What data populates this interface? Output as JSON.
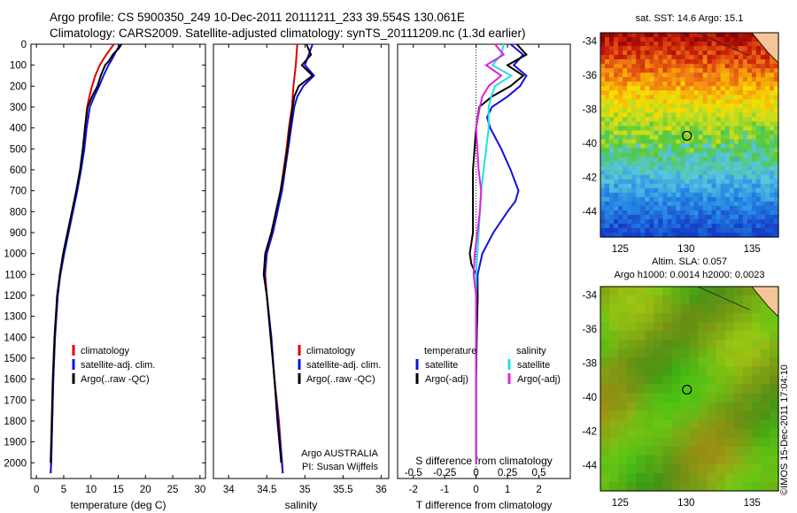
{
  "header": {
    "line1": "Argo profile: CS 5900350_249 10-Dec-2011 20111211_233 39.554S 130.061E",
    "line2": "Climatology: CARS2009. Satellite-adjusted climatology: synTS_20111209.nc (1.3d earlier)"
  },
  "credit": "©IMOS 15-Dec-2011 17:04:10",
  "colors": {
    "climatology": "#e00000",
    "satellite": "#1010e0",
    "argo": "#000000",
    "sal_satellite": "#20e0e8",
    "sal_argo": "#e020e0"
  },
  "chart_data": [
    {
      "type": "line",
      "xlabel": "temperature (deg C)",
      "ylabel": "",
      "xlim": [
        -1,
        31
      ],
      "ylim": [
        2075,
        0
      ],
      "xticks": [
        0,
        5,
        10,
        15,
        20,
        25,
        30
      ],
      "yticks": [
        0,
        100,
        200,
        300,
        400,
        500,
        600,
        700,
        800,
        900,
        1000,
        1100,
        1200,
        1300,
        1400,
        1500,
        1600,
        1700,
        1800,
        1900,
        2000
      ],
      "legend": [
        "climatology",
        "satellite-adj. clim.",
        "Argo(..raw -QC)"
      ],
      "series": [
        {
          "name": "climatology",
          "color": "#e00000",
          "depth": [
            0,
            50,
            100,
            150,
            200,
            250,
            300,
            400,
            500,
            600,
            700,
            800,
            900,
            1000,
            1100,
            1200,
            1400,
            1600,
            1800,
            2000,
            2050
          ],
          "values": [
            14.2,
            12.8,
            11.6,
            10.8,
            10.2,
            9.7,
            9.3,
            8.9,
            8.6,
            8.1,
            7.4,
            6.6,
            5.8,
            5.0,
            4.3,
            3.9,
            3.4,
            3.1,
            2.9,
            2.7,
            2.6
          ]
        },
        {
          "name": "satellite-adj. clim.",
          "color": "#1010e0",
          "depth": [
            0,
            20,
            50,
            80,
            100,
            150,
            200,
            250,
            300,
            400,
            500,
            600,
            700,
            800,
            900,
            1000,
            1100,
            1200,
            1400,
            1600,
            1800,
            2000,
            2050
          ],
          "values": [
            15.4,
            14.9,
            14.3,
            13.7,
            13.2,
            12.3,
            11.5,
            10.6,
            9.8,
            9.2,
            8.8,
            8.2,
            7.5,
            6.7,
            5.9,
            5.1,
            4.4,
            3.9,
            3.4,
            3.1,
            2.9,
            2.7,
            2.6
          ]
        },
        {
          "name": "Argo(..raw -QC)",
          "color": "#000000",
          "depth": [
            0,
            20,
            50,
            80,
            100,
            150,
            200,
            250,
            300,
            400,
            500,
            600,
            700,
            800,
            900,
            1000,
            1100,
            1200,
            1400,
            1600,
            1800,
            2000
          ],
          "values": [
            15.6,
            15.1,
            14.0,
            13.3,
            12.6,
            11.8,
            11.2,
            10.2,
            9.4,
            8.9,
            8.5,
            8.0,
            7.3,
            6.5,
            5.7,
            4.9,
            4.3,
            3.8,
            3.3,
            3.0,
            2.8,
            2.6
          ]
        }
      ]
    },
    {
      "type": "line",
      "xlabel": "salinity",
      "xlim": [
        33.8,
        36.1
      ],
      "ylim": [
        2075,
        0
      ],
      "xticks": [
        34,
        34.5,
        35,
        35.5,
        36
      ],
      "legend": [
        "climatology",
        "satellite-adj. clim.",
        "Argo(..raw -QC)"
      ],
      "annotation": [
        "Argo AUSTRALIA",
        "PI: Susan Wijffels"
      ],
      "series": [
        {
          "name": "climatology",
          "color": "#e00000",
          "depth": [
            0,
            100,
            200,
            300,
            400,
            500,
            600,
            700,
            800,
            900,
            1000,
            1100,
            1200,
            1400,
            1600,
            1800,
            2000,
            2050
          ],
          "values": [
            34.9,
            34.88,
            34.85,
            34.83,
            34.79,
            34.76,
            34.72,
            34.68,
            34.64,
            34.58,
            34.5,
            34.48,
            34.5,
            34.56,
            34.6,
            34.66,
            34.7,
            34.71
          ]
        },
        {
          "name": "satellite-adj. clim.",
          "color": "#1010e0",
          "depth": [
            0,
            50,
            100,
            150,
            200,
            250,
            300,
            400,
            500,
            600,
            700,
            800,
            900,
            1000,
            1100,
            1200,
            1400,
            1600,
            1800,
            2000,
            2050
          ],
          "values": [
            35.1,
            35.05,
            35.0,
            35.12,
            34.98,
            34.9,
            34.86,
            34.82,
            34.78,
            34.74,
            34.7,
            34.64,
            34.58,
            34.5,
            34.47,
            34.5,
            34.56,
            34.6,
            34.65,
            34.7,
            34.71
          ]
        },
        {
          "name": "Argo(..raw -QC)",
          "color": "#000000",
          "depth": [
            0,
            50,
            100,
            150,
            200,
            250,
            300,
            400,
            500,
            600,
            700,
            800,
            900,
            1000,
            1100,
            1200,
            1400,
            1600,
            1800,
            2000
          ],
          "values": [
            35.02,
            35.08,
            34.96,
            35.1,
            34.92,
            34.86,
            34.84,
            34.8,
            34.77,
            34.73,
            34.68,
            34.62,
            34.56,
            34.48,
            34.46,
            34.5,
            34.55,
            34.6,
            34.64,
            34.69
          ]
        }
      ]
    },
    {
      "type": "line",
      "xlabel": "T difference from climatology",
      "top_label": "S difference from climatology",
      "xlim": [
        -2.5,
        3
      ],
      "ylim": [
        2075,
        0
      ],
      "xticks": [
        -2,
        -1,
        0,
        1,
        2
      ],
      "xticks_top": [
        -0.5,
        -0.25,
        0,
        0.25,
        0.5
      ],
      "legend_groups": [
        {
          "title": "temperature",
          "items": [
            "satellite",
            "Argo(-adj)"
          ]
        },
        {
          "title": "salinity",
          "items": [
            "satellite",
            "Argo(-adj)"
          ]
        }
      ],
      "series": [
        {
          "name": "T satellite",
          "color": "#1010e0",
          "depth": [
            0,
            50,
            100,
            150,
            200,
            250,
            300,
            350,
            400,
            500,
            600,
            700,
            750,
            800,
            900,
            1000,
            1100,
            1200,
            1400,
            1600,
            2000
          ],
          "values": [
            1.1,
            1.5,
            1.2,
            1.6,
            1.4,
            1.0,
            0.5,
            0.35,
            0.45,
            0.8,
            1.1,
            1.35,
            1.25,
            1.0,
            0.55,
            0.2,
            0.05,
            0.05,
            0.02,
            0.0,
            0.0
          ]
        },
        {
          "name": "T Argo(-adj)",
          "color": "#000000",
          "depth": [
            0,
            50,
            100,
            150,
            200,
            250,
            300,
            400,
            500,
            600,
            700,
            800,
            900,
            1000,
            1050,
            1100,
            1200,
            1400,
            1600,
            2000
          ],
          "values": [
            1.3,
            1.6,
            1.0,
            1.5,
            1.1,
            0.5,
            0.1,
            0.0,
            -0.05,
            -0.1,
            -0.1,
            -0.1,
            -0.1,
            -0.2,
            -0.15,
            0.0,
            0.05,
            0.02,
            0.0,
            0.0
          ]
        },
        {
          "name": "S satellite",
          "color": "#20e0e8",
          "depth": [
            0,
            50,
            100,
            150,
            200,
            250,
            300,
            400,
            500,
            600,
            700,
            800,
            900,
            1000,
            1100,
            1200,
            1400,
            1600,
            2000
          ],
          "values": [
            0.22,
            0.2,
            0.13,
            0.28,
            0.15,
            0.12,
            0.1,
            0.1,
            0.08,
            0.06,
            0.04,
            0.03,
            0.02,
            0.01,
            0.0,
            0.0,
            0.0,
            0.0,
            0.0
          ]
        },
        {
          "name": "S Argo(-adj)",
          "color": "#e020e0",
          "depth": [
            0,
            50,
            100,
            150,
            200,
            250,
            300,
            400,
            500,
            600,
            700,
            800,
            900,
            1000,
            1100,
            1200,
            1400,
            1600,
            2000
          ],
          "values": [
            0.15,
            0.22,
            0.08,
            0.2,
            0.1,
            0.05,
            0.03,
            0.0,
            0.01,
            0.02,
            0.04,
            0.03,
            0.01,
            -0.01,
            -0.02,
            0.0,
            0.0,
            0.0,
            0.0
          ]
        }
      ]
    },
    {
      "type": "heatmap",
      "title": "sat. SST: 14.6  Argo: 15.1",
      "xlim": [
        123.5,
        137
      ],
      "ylim": [
        -45.5,
        -33.5
      ],
      "xticks": [
        125,
        130,
        135
      ],
      "yticks": [
        -34,
        -36,
        -38,
        -40,
        -42,
        -44
      ],
      "marker": [
        130.061,
        -39.554
      ]
    },
    {
      "type": "heatmap",
      "title": "Altim. SLA: 0.057",
      "subtitle": "Argo h1000: 0.0014  h2000: 0.0023",
      "xlim": [
        123.5,
        137
      ],
      "ylim": [
        -45.5,
        -33.5
      ],
      "xticks": [
        125,
        130,
        135
      ],
      "yticks": [
        -34,
        -36,
        -38,
        -40,
        -42,
        -44
      ],
      "marker": [
        130.061,
        -39.554
      ]
    }
  ]
}
